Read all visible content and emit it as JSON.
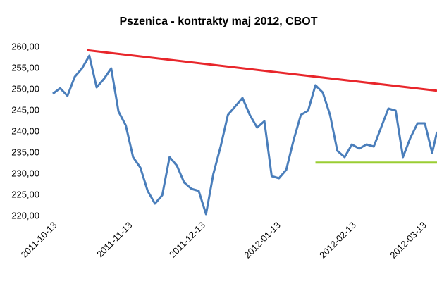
{
  "chart_data": {
    "type": "line",
    "title": "Pszenica - kontrakty maj 2012, CBOT",
    "x": [
      "2011-10-13",
      "2011-10-16",
      "2011-10-19",
      "2011-10-22",
      "2011-10-25",
      "2011-10-28",
      "2011-10-31",
      "2011-11-03",
      "2011-11-06",
      "2011-11-09",
      "2011-11-12",
      "2011-11-15",
      "2011-11-18",
      "2011-11-21",
      "2011-11-24",
      "2011-11-27",
      "2011-11-30",
      "2011-12-03",
      "2011-12-06",
      "2011-12-09",
      "2011-12-12",
      "2011-12-15",
      "2011-12-18",
      "2011-12-21",
      "2011-12-24",
      "2011-12-27",
      "2011-12-30",
      "2012-01-02",
      "2012-01-05",
      "2012-01-08",
      "2012-01-11",
      "2012-01-14",
      "2012-01-17",
      "2012-01-20",
      "2012-01-23",
      "2012-01-26",
      "2012-01-29",
      "2012-02-01",
      "2012-02-04",
      "2012-02-07",
      "2012-02-10",
      "2012-02-13",
      "2012-02-16",
      "2012-02-19",
      "2012-02-22",
      "2012-02-25",
      "2012-02-28",
      "2012-03-02",
      "2012-03-05",
      "2012-03-08",
      "2012-03-11",
      "2012-03-14",
      "2012-03-17",
      "2012-03-19"
    ],
    "series": [
      {
        "color": "#4a7ebb",
        "values": [
          249,
          250.3,
          248.5,
          253,
          255,
          258,
          250.5,
          252.5,
          255,
          244.8,
          241.5,
          234,
          231.5,
          226,
          223,
          225,
          234,
          232,
          228,
          226.5,
          226,
          220.5,
          230,
          236.5,
          244,
          246,
          248,
          244,
          241,
          242.5,
          229.5,
          229,
          231,
          238,
          244,
          245,
          251,
          249.3,
          244,
          235.5,
          234,
          237,
          236,
          237,
          236.5,
          241,
          245.5,
          245,
          234,
          238.5,
          242,
          242,
          235,
          240
        ]
      }
    ],
    "trendlines": [
      {
        "color": "#e8262b",
        "x": [
          "2011-10-27",
          "2012-03-19"
        ],
        "values": [
          259.3,
          249.7
        ]
      },
      {
        "color": "#9acd32",
        "x": [
          "2012-01-29",
          "2012-03-19"
        ],
        "values": [
          232.7,
          232.7
        ]
      }
    ],
    "xlim": [
      "2011-10-13",
      "2012-03-19"
    ],
    "xticks": [
      "2011-10-13",
      "2011-11-13",
      "2011-12-13",
      "2012-01-13",
      "2012-02-13",
      "2012-03-13"
    ],
    "ylim": [
      220,
      260
    ],
    "yticks": [
      {
        "value": 220,
        "label": "220,00"
      },
      {
        "value": 225,
        "label": "225,00"
      },
      {
        "value": 230,
        "label": "230,00"
      },
      {
        "value": 235,
        "label": "235,00"
      },
      {
        "value": 240,
        "label": "240,00"
      },
      {
        "value": 245,
        "label": "245,00"
      },
      {
        "value": 250,
        "label": "250,00"
      },
      {
        "value": 255,
        "label": "255,00"
      },
      {
        "value": 260,
        "label": "260,00"
      }
    ]
  }
}
